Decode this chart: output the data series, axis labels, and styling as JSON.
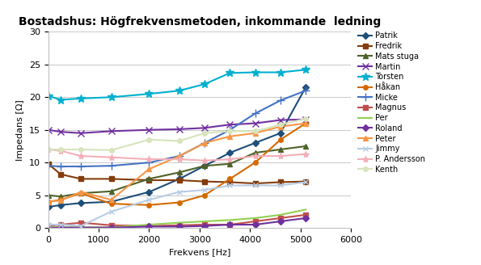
{
  "title": "Bostadshus: Högfrekvensmetoden, inkommande  ledning",
  "xlabel": "Frekvens [Hz]",
  "ylabel": "Impedans [Ω]",
  "xlim": [
    0,
    6000
  ],
  "ylim": [
    0,
    30
  ],
  "yticks": [
    0,
    5,
    10,
    15,
    20,
    25,
    30
  ],
  "xticks": [
    0,
    1000,
    2000,
    3000,
    4000,
    5000,
    6000
  ],
  "figsize": [
    5.95,
    3.28
  ],
  "dpi": 100,
  "series": [
    {
      "name": "Patrik",
      "color": "#1F4E79",
      "marker": "D",
      "markersize": 4,
      "linewidth": 1.5,
      "x": [
        0,
        250,
        650,
        1250,
        2000,
        2600,
        3100,
        3600,
        4100,
        4600,
        5100
      ],
      "y": [
        3.2,
        3.5,
        3.8,
        4.0,
        5.5,
        7.5,
        9.5,
        11.5,
        13.0,
        14.5,
        21.5
      ]
    },
    {
      "name": "Fredrik",
      "color": "#843C0C",
      "marker": "s",
      "markersize": 4,
      "linewidth": 1.5,
      "x": [
        0,
        250,
        650,
        1250,
        2000,
        2600,
        3100,
        3600,
        4100,
        4600,
        5100
      ],
      "y": [
        9.8,
        8.2,
        7.5,
        7.5,
        7.3,
        7.3,
        7.1,
        7.0,
        6.8,
        7.0,
        7.1
      ]
    },
    {
      "name": "Mats stuga",
      "color": "#4F6228",
      "marker": "^",
      "markersize": 4,
      "linewidth": 1.5,
      "x": [
        0,
        250,
        650,
        1250,
        2000,
        2600,
        3100,
        3600,
        4100,
        4600,
        5100
      ],
      "y": [
        5.0,
        4.8,
        5.3,
        5.6,
        7.5,
        8.5,
        9.5,
        9.8,
        11.5,
        12.0,
        12.5
      ]
    },
    {
      "name": "Martin",
      "color": "#7030A0",
      "marker": "x",
      "markersize": 6,
      "linewidth": 1.5,
      "x": [
        0,
        250,
        650,
        1250,
        2000,
        2600,
        3100,
        3600,
        4100,
        4600,
        5100
      ],
      "y": [
        15.0,
        14.7,
        14.5,
        14.8,
        15.0,
        15.1,
        15.3,
        15.8,
        16.0,
        16.5,
        16.6
      ]
    },
    {
      "name": "Torsten",
      "color": "#00B0D0",
      "marker": "*",
      "markersize": 7,
      "linewidth": 1.5,
      "x": [
        0,
        250,
        650,
        1250,
        2000,
        2600,
        3100,
        3600,
        4100,
        4600,
        5100
      ],
      "y": [
        20.2,
        19.6,
        19.8,
        20.0,
        20.5,
        21.0,
        22.0,
        23.7,
        23.8,
        23.8,
        24.2
      ]
    },
    {
      "name": "Håkan",
      "color": "#D46A00",
      "marker": "o",
      "markersize": 4,
      "linewidth": 1.5,
      "x": [
        0,
        250,
        650,
        1250,
        2000,
        2600,
        3100,
        3600,
        4100,
        4600,
        5100
      ],
      "y": [
        4.0,
        4.3,
        5.3,
        3.7,
        3.5,
        3.9,
        5.0,
        7.5,
        10.0,
        13.5,
        16.0
      ]
    },
    {
      "name": "Micke",
      "color": "#4472C4",
      "marker": "+",
      "markersize": 7,
      "linewidth": 1.5,
      "x": [
        0,
        250,
        650,
        1250,
        2000,
        2600,
        3100,
        3600,
        4100,
        4600,
        5100
      ],
      "y": [
        9.5,
        9.4,
        9.4,
        9.5,
        10.0,
        11.0,
        13.0,
        15.0,
        17.5,
        19.5,
        21.0
      ]
    },
    {
      "name": "Magnus",
      "color": "#C0504D",
      "marker": "s",
      "markersize": 4,
      "linewidth": 1.5,
      "x": [
        0,
        250,
        650,
        1250,
        2000,
        2600,
        3100,
        3600,
        4100,
        4600,
        5100
      ],
      "y": [
        0.3,
        0.5,
        0.8,
        0.4,
        0.3,
        0.4,
        0.5,
        0.5,
        1.0,
        1.5,
        2.0
      ]
    },
    {
      "name": "Per",
      "color": "#92D050",
      "marker": "none",
      "markersize": 4,
      "linewidth": 1.5,
      "x": [
        0,
        250,
        650,
        1250,
        2000,
        2600,
        3100,
        3600,
        4100,
        4600,
        5100
      ],
      "y": [
        0.1,
        0.1,
        0.1,
        0.1,
        0.5,
        0.8,
        1.0,
        1.2,
        1.5,
        2.0,
        2.8
      ]
    },
    {
      "name": "Roland",
      "color": "#7030A0",
      "marker": "D",
      "markersize": 4,
      "linewidth": 1.5,
      "x": [
        0,
        250,
        650,
        1250,
        2000,
        2600,
        3100,
        3600,
        4100,
        4600,
        5100
      ],
      "y": [
        0.0,
        0.05,
        0.05,
        0.05,
        0.2,
        0.2,
        0.3,
        0.5,
        0.5,
        1.0,
        1.5
      ]
    },
    {
      "name": "Peter",
      "color": "#F79646",
      "marker": "^",
      "markersize": 4,
      "linewidth": 1.5,
      "x": [
        0,
        250,
        650,
        1250,
        2000,
        2600,
        3100,
        3600,
        4100,
        4600,
        5100
      ],
      "y": [
        4.0,
        4.2,
        5.5,
        4.3,
        9.0,
        11.0,
        13.0,
        14.0,
        14.5,
        15.5,
        16.0
      ]
    },
    {
      "name": "Jimmy",
      "color": "#B8CCE4",
      "marker": "x",
      "markersize": 5,
      "linewidth": 1.5,
      "x": [
        0,
        250,
        650,
        1250,
        2000,
        2600,
        3100,
        3600,
        4100,
        4600,
        5100
      ],
      "y": [
        0.5,
        0.5,
        0.3,
        2.5,
        4.3,
        5.5,
        5.8,
        6.5,
        6.5,
        6.5,
        7.0
      ]
    },
    {
      "name": "P. Andersson",
      "color": "#F4AFBA",
      "marker": "*",
      "markersize": 6,
      "linewidth": 1.5,
      "x": [
        0,
        250,
        650,
        1250,
        2000,
        2600,
        3100,
        3600,
        4100,
        4600,
        5100
      ],
      "y": [
        12.0,
        11.8,
        11.0,
        10.8,
        10.5,
        10.5,
        10.3,
        10.5,
        11.0,
        11.0,
        11.3
      ]
    },
    {
      "name": "Kenth",
      "color": "#D7E4BC",
      "marker": "o",
      "markersize": 4,
      "linewidth": 1.5,
      "x": [
        0,
        250,
        650,
        1250,
        2000,
        2600,
        3100,
        3600,
        4100,
        4600,
        5100
      ],
      "y": [
        12.0,
        12.0,
        12.0,
        11.9,
        13.5,
        13.3,
        14.5,
        14.8,
        14.8,
        15.8,
        16.7
      ]
    }
  ]
}
